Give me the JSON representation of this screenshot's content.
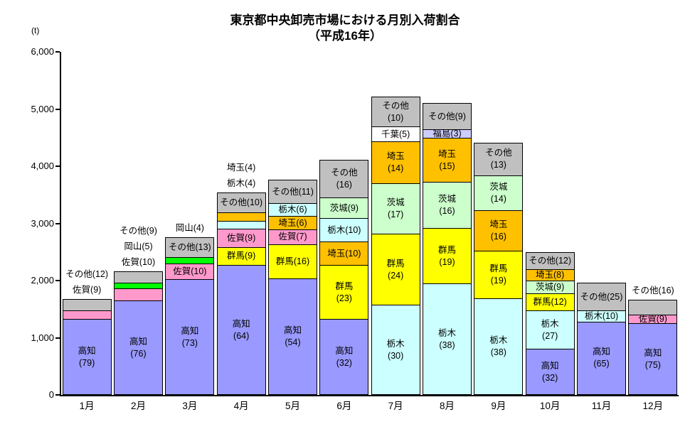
{
  "title": {
    "line1": "東京都中央卸売市場における月別入荷割合",
    "line2": "（平成16年）"
  },
  "y_axis": {
    "unit": "(t)",
    "tick_labels": [
      "0",
      "1,000",
      "2,000",
      "3,000",
      "4,000",
      "5,000",
      "6,000"
    ],
    "tick_values": [
      0,
      1000,
      2000,
      3000,
      4000,
      5000,
      6000
    ],
    "max": 6000
  },
  "colors": {
    "高知": "#9999FF",
    "佐賀": "#FF99CC",
    "岡山": "#00FF00",
    "群馬": "#FFFF00",
    "埼玉": "#FFC000",
    "栃木": "#CCFFFF",
    "茨城": "#CCFFCC",
    "千葉": "#FFFFFF",
    "福島": "#CCCCFF",
    "その他": "#C0C0C0"
  },
  "chart_data": {
    "type": "bar",
    "stacked": true,
    "title": "東京都中央卸売市場における月別入荷割合（平成16年）",
    "ylabel": "(t)",
    "ylim": [
      0,
      6000
    ],
    "grid": false,
    "legend": "none",
    "value_format": "percent_share_labels",
    "categories": [
      "1月",
      "2月",
      "3月",
      "4月",
      "5月",
      "6月",
      "7月",
      "8月",
      "9月",
      "10月",
      "11月",
      "12月"
    ],
    "totals_t": [
      1660,
      2150,
      2750,
      3530,
      3750,
      4100,
      5200,
      5090,
      4400,
      2480,
      1950,
      1650
    ],
    "months": [
      {
        "month": "1月",
        "total_t": 1660,
        "segments": [
          {
            "name": "高知",
            "pct": 79,
            "label": "in2"
          },
          {
            "name": "佐賀",
            "pct": 9,
            "label": "none"
          },
          {
            "name": "その他",
            "pct": 12,
            "label": "none"
          }
        ],
        "outside_labels": [
          "その他(12)",
          "佐賀(9)"
        ]
      },
      {
        "month": "2月",
        "total_t": 2150,
        "segments": [
          {
            "name": "高知",
            "pct": 76,
            "label": "in2"
          },
          {
            "name": "佐賀",
            "pct": 10,
            "label": "none"
          },
          {
            "name": "岡山",
            "pct": 5,
            "label": "none"
          },
          {
            "name": "その他",
            "pct": 9,
            "label": "none"
          }
        ],
        "outside_labels": [
          "その他(9)",
          "岡山(5)",
          "佐賀(10)"
        ]
      },
      {
        "month": "3月",
        "total_t": 2750,
        "segments": [
          {
            "name": "高知",
            "pct": 73,
            "label": "in2"
          },
          {
            "name": "佐賀",
            "pct": 10,
            "label": "in1"
          },
          {
            "name": "岡山",
            "pct": 4,
            "label": "none"
          },
          {
            "name": "その他",
            "pct": 13,
            "label": "in1"
          }
        ],
        "outside_labels": [
          "岡山(4)"
        ]
      },
      {
        "month": "4月",
        "total_t": 3530,
        "segments": [
          {
            "name": "高知",
            "pct": 64,
            "label": "in2"
          },
          {
            "name": "群馬",
            "pct": 9,
            "label": "in1"
          },
          {
            "name": "佐賀",
            "pct": 9,
            "label": "in1"
          },
          {
            "name": "栃木",
            "pct": 4,
            "label": "none"
          },
          {
            "name": "埼玉",
            "pct": 4,
            "label": "none"
          },
          {
            "name": "その他",
            "pct": 10,
            "label": "in1"
          }
        ],
        "outside_labels": [
          "埼玉(4)",
          "栃木(4)"
        ]
      },
      {
        "month": "5月",
        "total_t": 3750,
        "segments": [
          {
            "name": "高知",
            "pct": 54,
            "label": "in2"
          },
          {
            "name": "群馬",
            "pct": 16,
            "label": "in1"
          },
          {
            "name": "佐賀",
            "pct": 7,
            "label": "in1"
          },
          {
            "name": "埼玉",
            "pct": 6,
            "label": "in1"
          },
          {
            "name": "栃木",
            "pct": 6,
            "label": "in1"
          },
          {
            "name": "その他",
            "pct": 11,
            "label": "in1"
          }
        ],
        "outside_labels": []
      },
      {
        "month": "6月",
        "total_t": 4100,
        "segments": [
          {
            "name": "高知",
            "pct": 32,
            "label": "in2"
          },
          {
            "name": "群馬",
            "pct": 23,
            "label": "in2"
          },
          {
            "name": "埼玉",
            "pct": 10,
            "label": "in1"
          },
          {
            "name": "栃木",
            "pct": 10,
            "label": "in1"
          },
          {
            "name": "茨城",
            "pct": 9,
            "label": "in1"
          },
          {
            "name": "その他",
            "pct": 16,
            "label": "in2"
          }
        ],
        "outside_labels": []
      },
      {
        "month": "7月",
        "total_t": 5200,
        "segments": [
          {
            "name": "栃木",
            "pct": 30,
            "label": "in2"
          },
          {
            "name": "群馬",
            "pct": 24,
            "label": "in2"
          },
          {
            "name": "茨城",
            "pct": 17,
            "label": "in2"
          },
          {
            "name": "埼玉",
            "pct": 14,
            "label": "in2"
          },
          {
            "name": "千葉",
            "pct": 5,
            "label": "in1"
          },
          {
            "name": "その他",
            "pct": 10,
            "label": "in2"
          }
        ],
        "outside_labels": []
      },
      {
        "month": "8月",
        "total_t": 5090,
        "segments": [
          {
            "name": "栃木",
            "pct": 38,
            "label": "in2"
          },
          {
            "name": "群馬",
            "pct": 19,
            "label": "in2"
          },
          {
            "name": "茨城",
            "pct": 16,
            "label": "in2"
          },
          {
            "name": "埼玉",
            "pct": 15,
            "label": "in2"
          },
          {
            "name": "福島",
            "pct": 3,
            "label": "in1"
          },
          {
            "name": "その他",
            "pct": 9,
            "label": "in1"
          }
        ],
        "outside_labels": []
      },
      {
        "month": "9月",
        "total_t": 4400,
        "segments": [
          {
            "name": "栃木",
            "pct": 38,
            "label": "in2"
          },
          {
            "name": "群馬",
            "pct": 19,
            "label": "in2"
          },
          {
            "name": "埼玉",
            "pct": 16,
            "label": "in2"
          },
          {
            "name": "茨城",
            "pct": 14,
            "label": "in2"
          },
          {
            "name": "その他",
            "pct": 13,
            "label": "in2"
          }
        ],
        "outside_labels": []
      },
      {
        "month": "10月",
        "total_t": 2480,
        "segments": [
          {
            "name": "高知",
            "pct": 32,
            "label": "in2"
          },
          {
            "name": "栃木",
            "pct": 27,
            "label": "in2"
          },
          {
            "name": "群馬",
            "pct": 12,
            "label": "in1"
          },
          {
            "name": "茨城",
            "pct": 9,
            "label": "in1"
          },
          {
            "name": "埼玉",
            "pct": 8,
            "label": "in1"
          },
          {
            "name": "その他",
            "pct": 12,
            "label": "in1"
          }
        ],
        "outside_labels": []
      },
      {
        "month": "11月",
        "total_t": 1950,
        "segments": [
          {
            "name": "高知",
            "pct": 65,
            "label": "in2"
          },
          {
            "name": "栃木",
            "pct": 10,
            "label": "in1"
          },
          {
            "name": "その他",
            "pct": 25,
            "label": "in1"
          }
        ],
        "outside_labels": []
      },
      {
        "month": "12月",
        "total_t": 1650,
        "segments": [
          {
            "name": "高知",
            "pct": 75,
            "label": "in2"
          },
          {
            "name": "佐賀",
            "pct": 9,
            "label": "in1"
          },
          {
            "name": "その他",
            "pct": 16,
            "label": "none"
          }
        ],
        "outside_labels": [
          "その他(16)"
        ]
      }
    ]
  }
}
